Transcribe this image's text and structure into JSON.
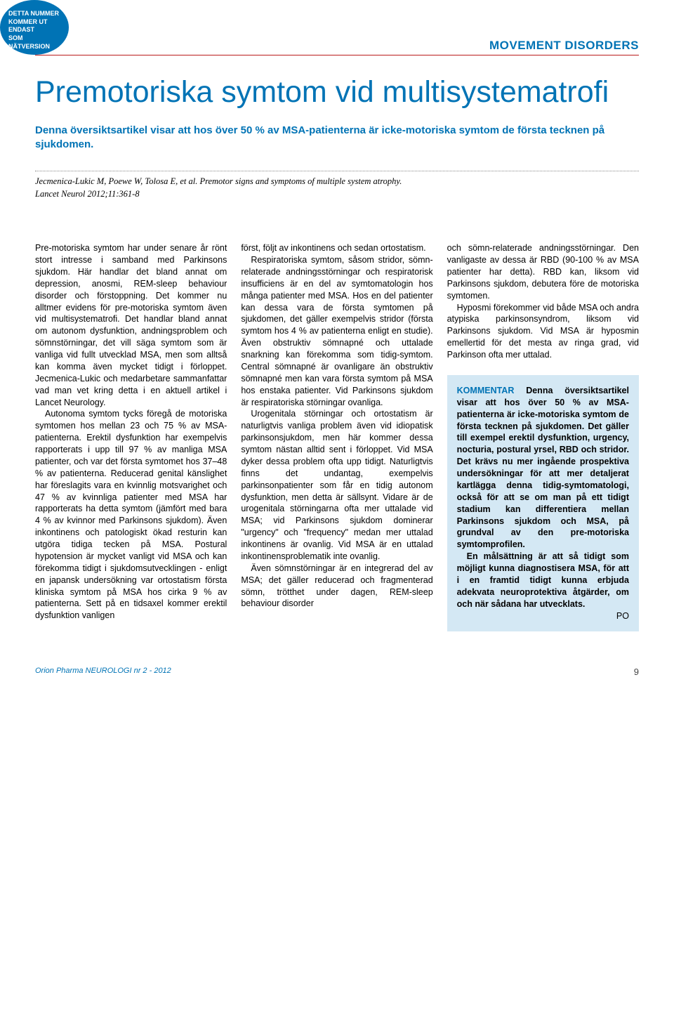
{
  "badge": {
    "line1": "DETTA NUMMER",
    "line2": "KOMMER UT ENDAST",
    "line3": "SOM NÄTVERSION",
    "bg_color": "#0073b5",
    "text_color": "#ffffff"
  },
  "category": "MOVEMENT DISORDERS",
  "headline": "Premotoriska symtom vid multisystematrofi",
  "lead": "Denna översiktsartikel visar att hos över 50 % av MSA-patienterna är icke-motoriska symtom de första tecknen på sjukdomen.",
  "citation": {
    "authors": "Jecmenica-Lukic M, Poewe W, Tolosa E, et al. Premotor signs and symptoms of multiple system atrophy.",
    "source": "Lancet Neurol 2012;11:361-8"
  },
  "body": {
    "col1": {
      "p1": "Pre-motoriska symtom har under senare år rönt stort intresse i samband med Parkinsons sjukdom. Här handlar det bland annat om depression, anosmi, REM-sleep behaviour disorder och förstoppning. Det kommer nu alltmer evidens för pre-motoriska symtom även vid multisystematrofi. Det handlar bland annat om autonom dysfunktion, andningsproblem och sömnstörningar, det vill säga symtom som är vanliga vid fullt utvecklad MSA, men som alltså kan komma även mycket tidigt i förloppet. Jecmenica-Lukic och medarbetare sammanfattar vad man vet kring detta i en aktuell artikel i Lancet Neurology.",
      "p2": "Autonoma symtom tycks föregå de motoriska symtomen hos mellan 23 och 75 % av MSA-patienterna. Erektil dysfunktion har exempelvis rapporterats i upp till 97 % av manliga MSA patienter, och var det första symtomet hos 37–48 % av patienterna. Reducerad genital känslighet har föreslagits vara en kvinnlig motsvarighet och 47 % av kvinnliga patienter med MSA har rapporterats ha detta symtom (jämfört med bara 4 % av kvinnor med Parkinsons sjukdom). Även inkontinens och patologiskt ökad resturin kan utgöra tidiga tecken på MSA. Postural hypotension är mycket vanligt vid MSA och kan förekomma tidigt i sjukdomsutvecklingen - enligt en japansk undersökning var ortostatism första kliniska symtom på MSA hos cirka 9 % av patienterna. Sett på en tidsaxel kommer erektil dysfunktion vanligen"
    },
    "col2": {
      "p1": "först, följt av inkontinens och sedan ortostatism.",
      "p2": "Respiratoriska symtom, såsom stridor, sömn-relaterade andningsstörningar och respiratorisk insufficiens är en del av symtomatologin hos många patienter med MSA. Hos en del patienter kan dessa vara de första symtomen på sjukdomen, det gäller exempelvis stridor (första symtom hos 4 % av patienterna enligt en studie). Även obstruktiv sömnapné och uttalade snarkning kan förekomma som tidig-symtom. Central sömnapné är ovanligare än obstruktiv sömnapné men kan vara första symtom på MSA hos enstaka patienter. Vid Parkinsons sjukdom är respiratoriska störningar ovanliga.",
      "p3": "Urogenitala störningar och ortostatism är naturligtvis vanliga problem även vid idiopatisk parkinsonsjukdom, men här kommer dessa symtom nästan alltid sent i förloppet. Vid MSA dyker dessa problem ofta upp tidigt. Naturligtvis finns det undantag, exempelvis parkinsonpatienter som får en tidig autonom dysfunktion, men detta är sällsynt. Vidare är de urogenitala störningarna ofta mer uttalade vid MSA; vid Parkinsons sjukdom dominerar \"urgency\" och \"frequency\" medan mer uttalad inkontinens är ovanlig. Vid MSA är en uttalad inkontinensproblematik inte ovanlig.",
      "p4": "Även sömnstörningar är en integrerad del av MSA; det gäller reducerad och fragmenterad sömn, trötthet under dagen, REM-sleep behaviour disorder"
    },
    "col3": {
      "p1": "och sömn-relaterade andningsstörningar. Den vanligaste av dessa är RBD (90-100 % av MSA patienter har detta). RBD kan, liksom vid Parkinsons sjukdom, debutera före de motoriska symtomen.",
      "p2": "Hyposmi förekommer vid både MSA och andra atypiska parkinsonsyndrom, liksom vid Parkinsons sjukdom. Vid MSA är hyposmin emellertid för det mesta av ringa grad, vid Parkinson ofta mer uttalad."
    }
  },
  "kommentar": {
    "label": "KOMMENTAR",
    "p1": "Denna översiktsartikel visar att hos över 50 % av MSA-patienterna är icke-motoriska symtom de första tecknen på sjukdomen. Det gäller till exempel erektil dysfunktion, urgency, nocturia, postural yrsel, RBD och stridor. Det krävs nu mer ingående prospektiva undersökningar för att mer detaljerat kartlägga denna tidig-symtomatologi, också för att se om man på ett tidigt stadium kan differentiera mellan Parkinsons sjukdom och MSA, på grundval av den pre-motoriska symtomprofilen.",
    "p2": "En målsättning är att så tidigt som möjligt kunna diagnostisera MSA, för att i en framtid tidigt kunna erbjuda adekvata neuroprotektiva åtgärder, om och när sådana har utvecklats.",
    "signature": "PO"
  },
  "footer": {
    "journal": "Orion Pharma NEUROLOGI nr 2 - 2012",
    "pagenum": "9"
  },
  "colors": {
    "accent": "#0073b5",
    "rule": "#ba1a1a",
    "box_bg": "#d4e8f4",
    "text": "#000000"
  }
}
